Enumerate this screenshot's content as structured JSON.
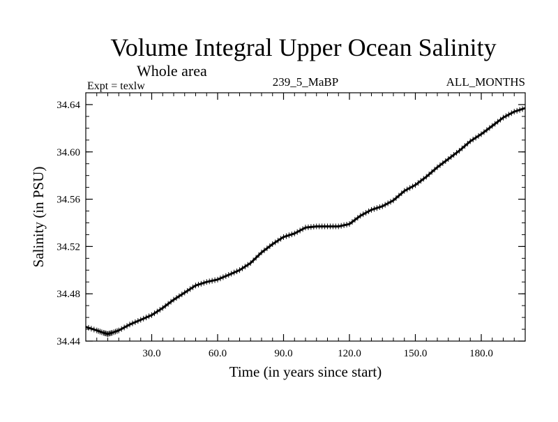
{
  "chart_data": {
    "type": "line",
    "title": "Volume Integral Upper Ocean Salinity",
    "subtitle": "Whole area",
    "annotations": {
      "left": "Expt = texlw",
      "center": "239_5_MaBP",
      "right": "ALL_MONTHS"
    },
    "xlabel": "Time (in years since start)",
    "ylabel": "Salinity (in PSU)",
    "xlim": [
      0,
      200
    ],
    "ylim": [
      34.44,
      34.65
    ],
    "x_ticks": [
      30,
      60,
      90,
      120,
      150,
      180
    ],
    "x_tick_labels": [
      "30.0",
      "60.0",
      "90.0",
      "120.0",
      "150.0",
      "180.0"
    ],
    "y_ticks": [
      34.44,
      34.48,
      34.52,
      34.56,
      34.6,
      34.64
    ],
    "y_tick_labels": [
      "34.44",
      "34.48",
      "34.52",
      "34.56",
      "34.60",
      "34.64"
    ],
    "series": [
      {
        "name": "Salinity",
        "x": [
          0,
          5,
          8,
          10,
          12,
          15,
          20,
          25,
          30,
          35,
          40,
          45,
          50,
          55,
          60,
          65,
          70,
          75,
          80,
          85,
          90,
          95,
          100,
          105,
          110,
          115,
          120,
          125,
          130,
          135,
          140,
          145,
          150,
          155,
          160,
          165,
          170,
          175,
          180,
          185,
          190,
          195,
          200
        ],
        "values": [
          34.452,
          34.449,
          34.447,
          34.446,
          34.447,
          34.449,
          34.454,
          34.458,
          34.462,
          34.468,
          34.475,
          34.481,
          34.487,
          34.49,
          34.492,
          34.496,
          34.5,
          34.506,
          34.515,
          34.522,
          34.528,
          34.531,
          34.536,
          34.537,
          34.537,
          34.537,
          34.539,
          34.546,
          34.551,
          34.554,
          34.559,
          34.567,
          34.572,
          34.579,
          34.587,
          34.594,
          34.601,
          34.609,
          34.615,
          34.622,
          34.629,
          34.634,
          34.637
        ]
      }
    ]
  }
}
